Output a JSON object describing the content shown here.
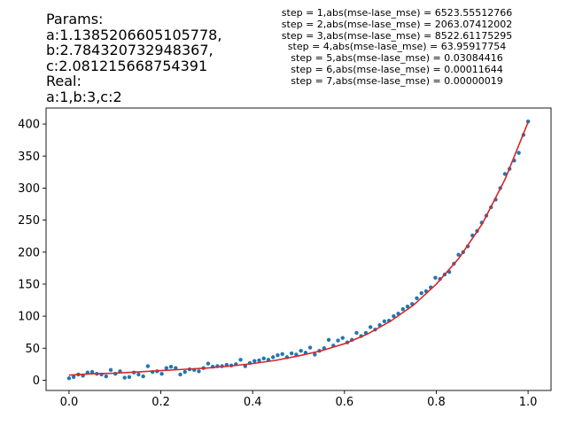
{
  "params_block": {
    "lines": [
      "Params:",
      "a:1.1385206605105778,",
      "b:2.784320732948367,",
      "c:2.081215668754391",
      "Real:",
      "a:1,b:3,c:2"
    ]
  },
  "steps_block": {
    "lines": [
      "step = 1,abs(mse-lase_mse) = 6523.55512766",
      "step = 2,abs(mse-lase_mse) = 2063.07412002",
      "step = 3,abs(mse-lase_mse) = 8522.61175295",
      "step = 4,abs(mse-lase_mse) = 63.95917754",
      "step = 5,abs(mse-lase_mse) = 0.03084416",
      "step = 6,abs(mse-lase_mse) = 0.00011644",
      "step = 7,abs(mse-lase_mse) = 0.00000019"
    ]
  },
  "chart_data": {
    "type": "scatter",
    "title": "",
    "xlabel": "",
    "ylabel": "",
    "xlim": [
      -0.05,
      1.05
    ],
    "ylim": [
      -16,
      425
    ],
    "xticks": [
      0.0,
      0.2,
      0.4,
      0.6,
      0.8,
      1.0
    ],
    "xtick_labels": [
      "0.0",
      "0.2",
      "0.4",
      "0.6",
      "0.8",
      "1.0"
    ],
    "yticks": [
      0,
      50,
      100,
      150,
      200,
      250,
      300,
      350,
      400
    ],
    "ytick_labels": [
      "0",
      "50",
      "100",
      "150",
      "200",
      "250",
      "300",
      "350",
      "400"
    ],
    "grid": false,
    "colors": {
      "points": "#1f77b4",
      "fit": "#d62728"
    },
    "fit_params": {
      "a": 1.1385206605105778,
      "b": 2.784320732948367,
      "c": 2.081215668754391
    },
    "series": [
      {
        "kind": "scatter",
        "x": [
          0.0,
          0.0101,
          0.0202,
          0.0303,
          0.0404,
          0.0505,
          0.0606,
          0.0707,
          0.0808,
          0.0909,
          0.101,
          0.1111,
          0.1212,
          0.1313,
          0.1414,
          0.1515,
          0.1616,
          0.1717,
          0.1818,
          0.1919,
          0.202,
          0.2121,
          0.2222,
          0.2323,
          0.2424,
          0.2525,
          0.2626,
          0.2727,
          0.2828,
          0.2929,
          0.303,
          0.3131,
          0.3232,
          0.3333,
          0.3434,
          0.3535,
          0.3636,
          0.3737,
          0.3838,
          0.3939,
          0.404,
          0.4141,
          0.4242,
          0.4343,
          0.4444,
          0.4545,
          0.4646,
          0.4747,
          0.4848,
          0.4949,
          0.5051,
          0.5152,
          0.5253,
          0.5354,
          0.5455,
          0.5556,
          0.5657,
          0.5758,
          0.5859,
          0.596,
          0.6061,
          0.6162,
          0.6263,
          0.6364,
          0.6465,
          0.6566,
          0.6667,
          0.6768,
          0.6869,
          0.697,
          0.7071,
          0.7172,
          0.7273,
          0.7374,
          0.7475,
          0.7576,
          0.7677,
          0.7778,
          0.7879,
          0.798,
          0.8081,
          0.8182,
          0.8283,
          0.8384,
          0.8485,
          0.8586,
          0.8687,
          0.8788,
          0.8889,
          0.899,
          0.9091,
          0.9192,
          0.9293,
          0.9394,
          0.9495,
          0.9596,
          0.9697,
          0.9798,
          0.9899,
          1.0
        ],
        "y": [
          3,
          5,
          9,
          7,
          12,
          13,
          10,
          9,
          6,
          16,
          10,
          14,
          4,
          5,
          12,
          9,
          6,
          22,
          13,
          14,
          10,
          19,
          21,
          19,
          9,
          13,
          17,
          16,
          14,
          19,
          26,
          21,
          22,
          22,
          24,
          23,
          25,
          32,
          22,
          27,
          30,
          31,
          34,
          32,
          36,
          39,
          41,
          36,
          42,
          40,
          46,
          43,
          51,
          40,
          46,
          50,
          63,
          54,
          62,
          66,
          59,
          63,
          74,
          69,
          74,
          83,
          79,
          86,
          92,
          93,
          100,
          104,
          111,
          115,
          119,
          128,
          136,
          139,
          145,
          160,
          158,
          165,
          169,
          182,
          196,
          200,
          209,
          226,
          233,
          246,
          257,
          270,
          282,
          300,
          322,
          330,
          343,
          355,
          383,
          404
        ]
      },
      {
        "kind": "line",
        "function": "a*exp(b*x)+c*x^2 style fit curve",
        "x": [
          0.0,
          0.05,
          0.1,
          0.15,
          0.2,
          0.25,
          0.3,
          0.35,
          0.4,
          0.45,
          0.5,
          0.55,
          0.6,
          0.65,
          0.7,
          0.75,
          0.8,
          0.85,
          0.9,
          0.95,
          1.0
        ],
        "y": [
          8,
          10,
          11,
          13,
          15,
          17,
          19,
          22,
          26,
          31,
          38,
          46,
          57,
          72,
          92,
          117,
          150,
          191,
          244,
          314,
          403
        ]
      }
    ]
  }
}
